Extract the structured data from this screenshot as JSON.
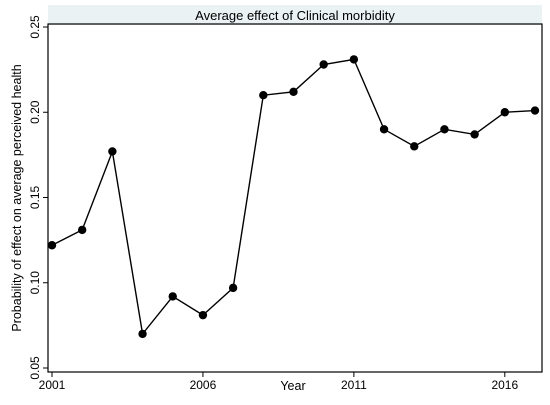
{
  "chart_data": {
    "type": "line",
    "title": "Average effect of Clinical morbidity",
    "xlabel": "Year",
    "ylabel": "Probability of effect on average perceived health",
    "xlim": [
      2001,
      2017
    ],
    "ylim": [
      0.05,
      0.25
    ],
    "xticks": [
      2001,
      2006,
      2011,
      2016
    ],
    "yticks": [
      "0.05",
      "0.10",
      "0.15",
      "0.20",
      "0.25"
    ],
    "grid": false,
    "series": [
      {
        "x": [
          2001,
          2002,
          2003,
          2004,
          2005,
          2006,
          2007,
          2008,
          2009,
          2010,
          2011,
          2012,
          2013,
          2014,
          2015,
          2016,
          2017
        ],
        "values": [
          0.122,
          0.131,
          0.177,
          0.07,
          0.092,
          0.081,
          0.097,
          0.21,
          0.212,
          0.228,
          0.231,
          0.19,
          0.18,
          0.19,
          0.187,
          0.2,
          0.201
        ],
        "color": "#000000"
      }
    ]
  }
}
